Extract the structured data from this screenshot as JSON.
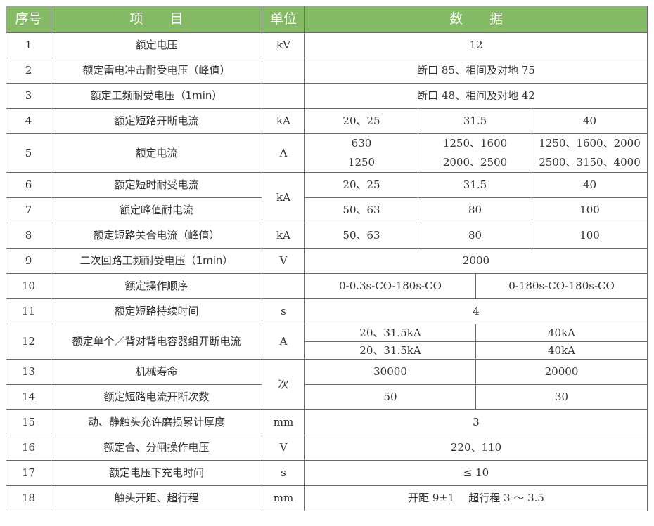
{
  "header": {
    "no": "序号",
    "item": "项　　目",
    "unit": "单位",
    "data": "数　　据"
  },
  "colors": {
    "header_bg": "#84b965",
    "border": "#6b6b6b",
    "text": "#333333"
  },
  "rows": [
    {
      "no": "1",
      "item": "额定电压",
      "unit": "kV",
      "cells": [
        {
          "text": "12",
          "span": 4
        }
      ]
    },
    {
      "no": "2",
      "item": "额定雷电冲击耐受电压（峰值）",
      "unit": "",
      "cells": [
        {
          "text": "断口 85、相间及对地 75",
          "span": 4
        }
      ]
    },
    {
      "no": "3",
      "item": "额定工频耐受电压（1min）",
      "unit": "",
      "cells": [
        {
          "text": "断口 48、相间及对地 42",
          "span": 4
        }
      ]
    },
    {
      "no": "4",
      "item": "额定短路开断电流",
      "unit": "kA",
      "cells": [
        {
          "text": "20、25",
          "span": 1
        },
        {
          "text": "31.5",
          "span": 2
        },
        {
          "text": "40",
          "span": 1
        }
      ]
    },
    {
      "no": "5",
      "item": "额定电流",
      "unit": "A",
      "cells": [
        {
          "text": "630\n1250",
          "span": 1
        },
        {
          "text": "1250、1600\n2000、2500",
          "span": 2
        },
        {
          "text": "1250、1600、2000\n2500、3150、4000",
          "span": 1
        }
      ]
    },
    {
      "no": "6",
      "item": "额定短时耐受电流",
      "unit": "kA",
      "unit_rowspan": 2,
      "cells": [
        {
          "text": "20、25",
          "span": 1
        },
        {
          "text": "31.5",
          "span": 2
        },
        {
          "text": "40",
          "span": 1
        }
      ]
    },
    {
      "no": "7",
      "item": "额定峰值耐电流",
      "cells": [
        {
          "text": "50、63",
          "span": 1
        },
        {
          "text": "80",
          "span": 2
        },
        {
          "text": "100",
          "span": 1
        }
      ]
    },
    {
      "no": "8",
      "item": "额定短路关合电流（峰值）",
      "unit": "kA",
      "cells": [
        {
          "text": "50、63",
          "span": 1
        },
        {
          "text": "80",
          "span": 2
        },
        {
          "text": "100",
          "span": 1
        }
      ]
    },
    {
      "no": "9",
      "item": "二次回路工频耐受电压（1min）",
      "unit": "V",
      "cells": [
        {
          "text": "2000",
          "span": 4
        }
      ]
    },
    {
      "no": "10",
      "item": "额定操作顺序",
      "unit": "",
      "cells": [
        {
          "text": "0-0.3s-CO-180s-CO",
          "span": 2
        },
        {
          "text": "0-180s-CO-180s-CO",
          "span": 2
        }
      ]
    },
    {
      "no": "11",
      "item": "额定短路持续时间",
      "unit": "s",
      "cells": [
        {
          "text": "4",
          "span": 4
        }
      ]
    },
    {
      "no": "12",
      "item": "额定单个／背对背电容器组开断电流",
      "unit": "A",
      "rowspan": 2,
      "unit_rowspan": 2,
      "sub": true,
      "cells": [
        {
          "text": "20、31.5kA",
          "span": 2
        },
        {
          "text": "40kA",
          "span": 2
        }
      ]
    },
    {
      "sub": true,
      "cells": [
        {
          "text": "20、31.5kA",
          "span": 2
        },
        {
          "text": "40kA",
          "span": 2
        }
      ]
    },
    {
      "no": "13",
      "item": "机械寿命",
      "unit": "次",
      "unit_rowspan": 2,
      "cells": [
        {
          "text": "30000",
          "span": 2
        },
        {
          "text": "20000",
          "span": 2
        }
      ]
    },
    {
      "no": "14",
      "item": "额定短路电流开断次数",
      "cells": [
        {
          "text": "50",
          "span": 2
        },
        {
          "text": "30",
          "span": 2
        }
      ]
    },
    {
      "no": "15",
      "item": "动、静触头允许磨损累计厚度",
      "unit": "mm",
      "cells": [
        {
          "text": "3",
          "span": 4
        }
      ]
    },
    {
      "no": "16",
      "item": "额定合、分闸操作电压",
      "unit": "V",
      "cells": [
        {
          "text": "220、110",
          "span": 4
        }
      ]
    },
    {
      "no": "17",
      "item": "额定电压下充电时间",
      "unit": "s",
      "cells": [
        {
          "text": "≤ 10",
          "span": 4
        }
      ]
    },
    {
      "no": "18",
      "item": "触头开距、超行程",
      "unit": "mm",
      "cells": [
        {
          "text": "开距 9±1　 超行程 3 ～ 3.5",
          "span": 4
        }
      ]
    }
  ]
}
